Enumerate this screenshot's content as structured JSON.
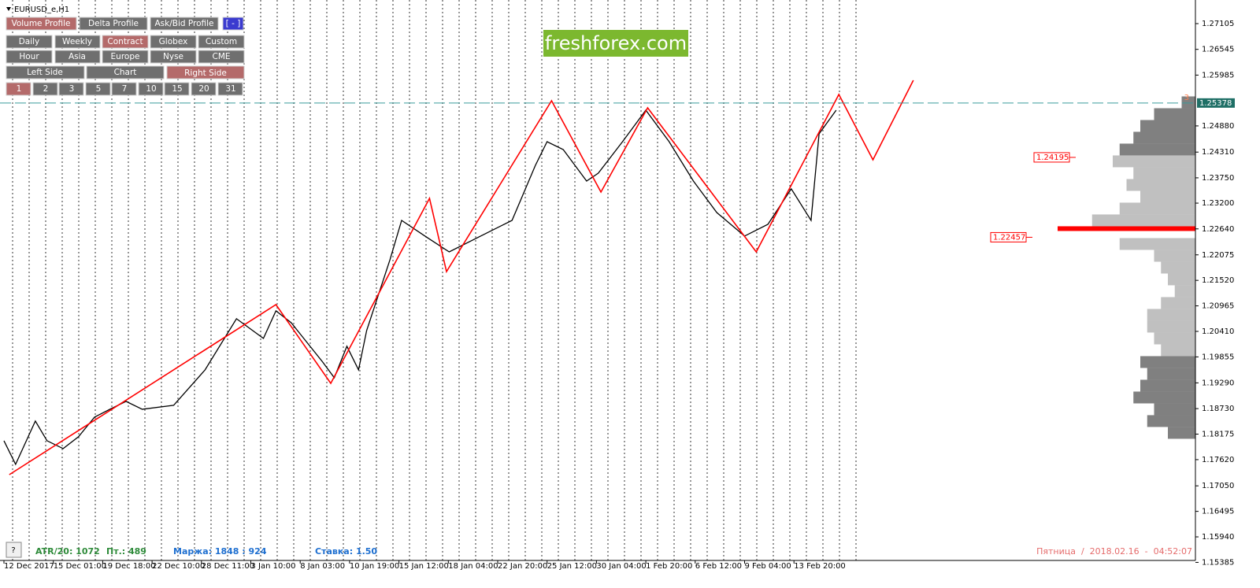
{
  "symbol": "EURUSD_e,H1",
  "toolbar": {
    "rows": [
      [
        "Volume Profile",
        "Delta Profile",
        "Ask/Bid Profile",
        "[ - ]"
      ],
      [
        "Daily",
        "Weekly",
        "Contract",
        "Globex",
        "Custom"
      ],
      [
        "Hour",
        "Asia",
        "Europe",
        "Nyse",
        "CME"
      ],
      [
        "Left Side",
        "Chart",
        "Right Side"
      ],
      [
        "1",
        "2",
        "3",
        "5",
        "7",
        "10",
        "15",
        "20",
        "31"
      ]
    ]
  },
  "watermark": "freshforex.com",
  "chart_data": {
    "type": "line",
    "xlim": [
      0,
      1327
    ],
    "ylim": [
      1.15427,
      1.27533
    ],
    "xticks": [
      {
        "value": 0,
        "label": "12 Dec 2017"
      },
      {
        "value": 55,
        "label": "15 Dec 01:00"
      },
      {
        "value": 110,
        "label": "19 Dec 18:00"
      },
      {
        "value": 165,
        "label": "22 Dec 10:00"
      },
      {
        "value": 220,
        "label": "28 Dec 11:00"
      },
      {
        "value": 275,
        "label": "3 Jan 10:00"
      },
      {
        "value": 330,
        "label": "8 Jan 03:00"
      },
      {
        "value": 385,
        "label": "10 Jan 19:00"
      },
      {
        "value": 440,
        "label": "15 Jan 12:00"
      },
      {
        "value": 495,
        "label": "18 Jan 04:00"
      },
      {
        "value": 550,
        "label": "22 Jan 20:00"
      },
      {
        "value": 605,
        "label": "25 Jan 12:00"
      },
      {
        "value": 660,
        "label": "30 Jan 04:00"
      },
      {
        "value": 715,
        "label": "1 Feb 20:00"
      },
      {
        "value": 770,
        "label": "6 Feb 12:00"
      },
      {
        "value": 825,
        "label": "9 Feb 04:00"
      },
      {
        "value": 880,
        "label": "13 Feb 20:00"
      }
    ],
    "yticks": [
      1.27105,
      1.26545,
      1.25985,
      {
        "value": 1.2488,
        "label": "1.24880"
      },
      {
        "value": 1.2431,
        "label": "1.24310"
      },
      {
        "value": 1.2375,
        "label": "1.23750"
      },
      {
        "value": 1.232,
        "label": "1.23200"
      },
      {
        "value": 1.2264,
        "label": "1.22640"
      },
      1.22075,
      {
        "value": 1.2152,
        "label": "1.21520"
      },
      1.20965,
      {
        "value": 1.2041,
        "label": "1.20410"
      },
      1.19855,
      {
        "value": 1.1929,
        "label": "1.19290"
      },
      {
        "value": 1.1873,
        "label": "1.18730"
      },
      1.18175,
      {
        "value": 1.1762,
        "label": "1.17620"
      },
      {
        "value": 1.1705,
        "label": "1.17050"
      },
      1.16495,
      {
        "value": 1.1594,
        "label": "1.15940"
      },
      1.15385
    ],
    "current_price": 1.25378,
    "levels": [
      1.24195,
      1.22457
    ],
    "price": {
      "color": "#000000",
      "x": [
        0,
        13,
        35,
        48,
        66,
        83,
        101,
        118,
        136,
        154,
        189,
        224,
        259,
        289,
        303,
        320,
        355,
        368,
        382,
        395,
        404,
        430,
        443,
        469,
        496,
        531,
        566,
        592,
        605,
        623,
        649,
        662,
        689,
        715,
        741,
        768,
        794,
        825,
        851,
        877,
        899,
        908,
        927
      ],
      "values": [
        1.18031,
        1.17518,
        1.18459,
        1.18031,
        1.1786,
        1.18117,
        1.18545,
        1.18716,
        1.18887,
        1.18716,
        1.18802,
        1.19572,
        1.20685,
        1.20257,
        1.20856,
        1.20599,
        1.19743,
        1.19401,
        1.20086,
        1.19572,
        1.20428,
        1.21969,
        1.22825,
        1.22483,
        1.2214,
        1.22483,
        1.22825,
        1.24023,
        1.24537,
        1.24366,
        1.23681,
        1.23852,
        1.24537,
        1.25222,
        1.24537,
        1.23681,
        1.22996,
        1.22483,
        1.22739,
        1.2351,
        1.22825,
        1.24708,
        1.25222
      ]
    },
    "zigzag": {
      "color": "#ff0000",
      "label": "3",
      "x": [
        6,
        303,
        364,
        474,
        493,
        610,
        665,
        717,
        838,
        930,
        968,
        1013
      ],
      "values": [
        1.17293,
        1.20992,
        1.1928,
        1.23304,
        1.21711,
        1.25427,
        1.23441,
        1.25273,
        1.22139,
        1.25564,
        1.24143,
        1.25872
      ]
    },
    "volume_profile": {
      "prices": [
        1.25393,
        1.25136,
        1.24879,
        1.24623,
        1.24366,
        1.24109,
        1.23852,
        1.23595,
        1.23338,
        1.23082,
        1.22825,
        1.22568,
        1.22311,
        1.22054,
        1.21797,
        1.21541,
        1.21284,
        1.21027,
        1.2077,
        1.20513,
        1.20256,
        1.2,
        1.19743,
        1.19486,
        1.19229,
        1.18972,
        1.18715,
        1.18459,
        1.18202
      ],
      "values": [
        10,
        30,
        40,
        45,
        55,
        60,
        45,
        50,
        40,
        55,
        75,
        100,
        55,
        30,
        25,
        20,
        15,
        25,
        35,
        35,
        30,
        25,
        40,
        35,
        40,
        45,
        30,
        35,
        20
      ],
      "colors": [
        "#808080",
        "#808080",
        "#808080",
        "#808080",
        "#808080",
        "#c0c0c0",
        "#c0c0c0",
        "#c0c0c0",
        "#c0c0c0",
        "#c0c0c0",
        "#c0c0c0",
        "#ff0000",
        "#c0c0c0",
        "#c0c0c0",
        "#c0c0c0",
        "#c0c0c0",
        "#c0c0c0",
        "#c0c0c0",
        "#c0c0c0",
        "#c0c0c0",
        "#c0c0c0",
        "#c0c0c0",
        "#808080",
        "#808080",
        "#808080",
        "#808080",
        "#808080",
        "#808080",
        "#808080"
      ]
    }
  },
  "status": {
    "help": "?",
    "atr": "ATR/20: 1072",
    "bars": "Пт.: 489",
    "margin": "Маржа: 1848 : 924",
    "rate": "Ставка: 1.50",
    "datetime": "Пятница  /  2018.02.16  -  04:52:07"
  }
}
